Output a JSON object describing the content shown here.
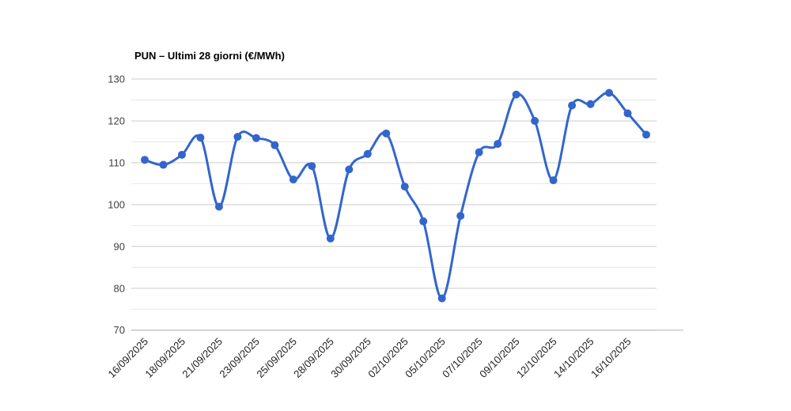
{
  "chart_data": {
    "type": "line",
    "title": "PUN – Ultimi 28 giorni (€/MWh)",
    "xlabel": "",
    "ylabel": "",
    "ylim": [
      70,
      130
    ],
    "y_major_step": 10,
    "y_minor_step": 5,
    "grid": "horizontal-only",
    "legend_position": "none",
    "x_tick_every": 2,
    "x_tick_labels": [
      "16/09/2025",
      "18/09/2025",
      "21/09/2025",
      "23/09/2025",
      "25/09/2025",
      "28/09/2025",
      "30/09/2025",
      "02/10/2025",
      "05/10/2025",
      "07/10/2025",
      "09/10/2025",
      "12/10/2025",
      "14/10/2025",
      "16/10/2025"
    ],
    "y_tick_labels": [
      "70",
      "80",
      "90",
      "100",
      "110",
      "120",
      "130"
    ],
    "series": [
      {
        "name": "PUN",
        "values": [
          110.7,
          109.5,
          111.9,
          116.0,
          99.5,
          116.2,
          115.9,
          114.2,
          106.0,
          109.2,
          91.9,
          108.4,
          112.1,
          117.0,
          104.3,
          96.0,
          77.6,
          97.3,
          112.5,
          114.5,
          126.3,
          120.0,
          105.8,
          123.7,
          124.0,
          126.7,
          121.8,
          116.7
        ]
      }
    ],
    "colors": {
      "line": "#3366cc",
      "marker": "#3366cc",
      "grid_major": "#cccccc",
      "grid_minor": "#e6e6e6",
      "baseline": "#b3b3b3",
      "title_text": "#000000",
      "axis_text": "#404040",
      "background": "#ffffff"
    },
    "style": {
      "curve": "smooth",
      "marker_shape": "circle",
      "x_labels_rotated_deg": 45
    }
  }
}
